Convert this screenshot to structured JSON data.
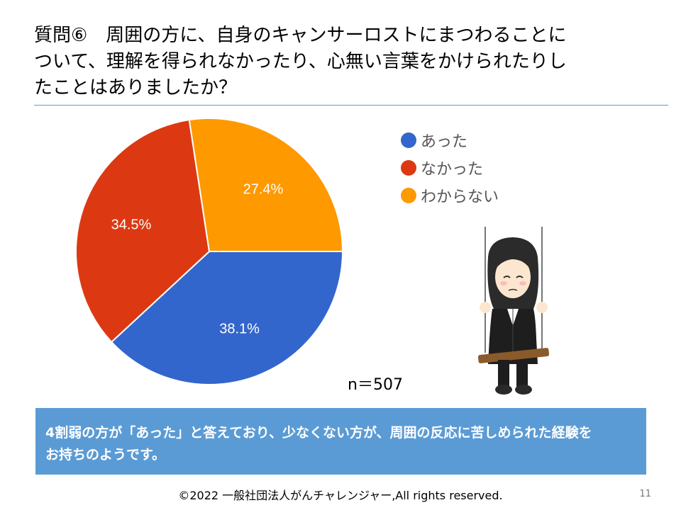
{
  "slide": {
    "title_lines": [
      "質問⑥　周囲の方に、自身のキャンサーロストにまつわることに",
      "ついて、理解を得られなかったり、心無い言葉をかけられたりし",
      "たことはありましたか？"
    ],
    "sample_size": "n＝507",
    "callout_lines": [
      "4割弱の方が「あった」と答えており、少なくない方が、周囲の反応に苦しめられた経験を",
      "お持ちのようです。"
    ],
    "footer": "©2022 一般社団法人がんチャレンジャー,All rights reserved.",
    "page_number": "11"
  },
  "chart_data": {
    "type": "pie",
    "title": "",
    "categories": [
      "あった",
      "なかった",
      "わからない"
    ],
    "values": [
      38.1,
      34.5,
      27.4
    ],
    "value_labels": [
      "38.1%",
      "34.5%",
      "27.4%"
    ],
    "colors": [
      "#3366cc",
      "#dc3912",
      "#ff9900"
    ],
    "legend_position": "right"
  }
}
